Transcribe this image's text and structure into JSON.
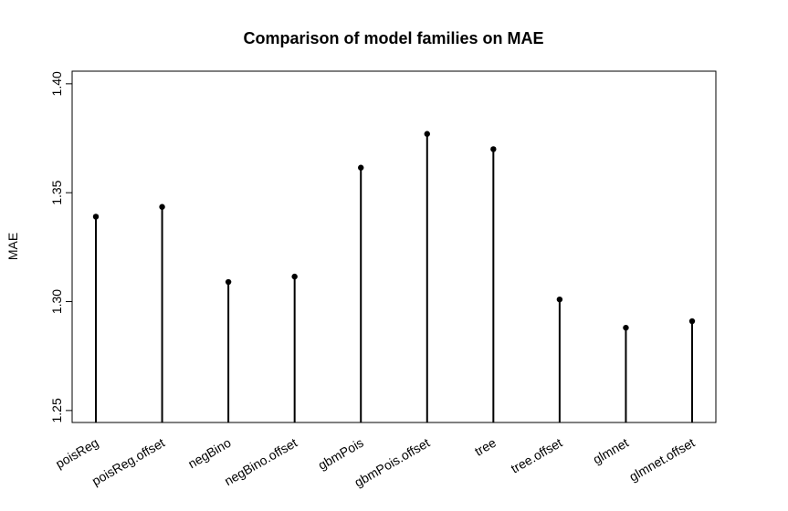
{
  "chart_data": {
    "type": "line",
    "style": "vertical-lines-with-points",
    "title": "Comparison of model families on MAE",
    "xlabel": "",
    "ylabel": "MAE",
    "categories": [
      "poisReg",
      "poisReg.offset",
      "negBino",
      "negBino.offset",
      "gbmPois",
      "gbmPois.offset",
      "tree",
      "tree.offset",
      "glmnet",
      "glmnet.offset"
    ],
    "values": [
      1.339,
      1.3435,
      1.309,
      1.3115,
      1.3615,
      1.377,
      1.37,
      1.301,
      1.288,
      1.291
    ],
    "ylim": [
      1.2445,
      1.4058
    ],
    "yticks": [
      1.25,
      1.3,
      1.35,
      1.4
    ],
    "ytick_labels": [
      "1.25",
      "1.30",
      "1.35",
      "1.40"
    ],
    "grid": false,
    "legend": "none",
    "colors": {
      "line": "#000000",
      "point": "#000000",
      "background": "#ffffff"
    }
  }
}
